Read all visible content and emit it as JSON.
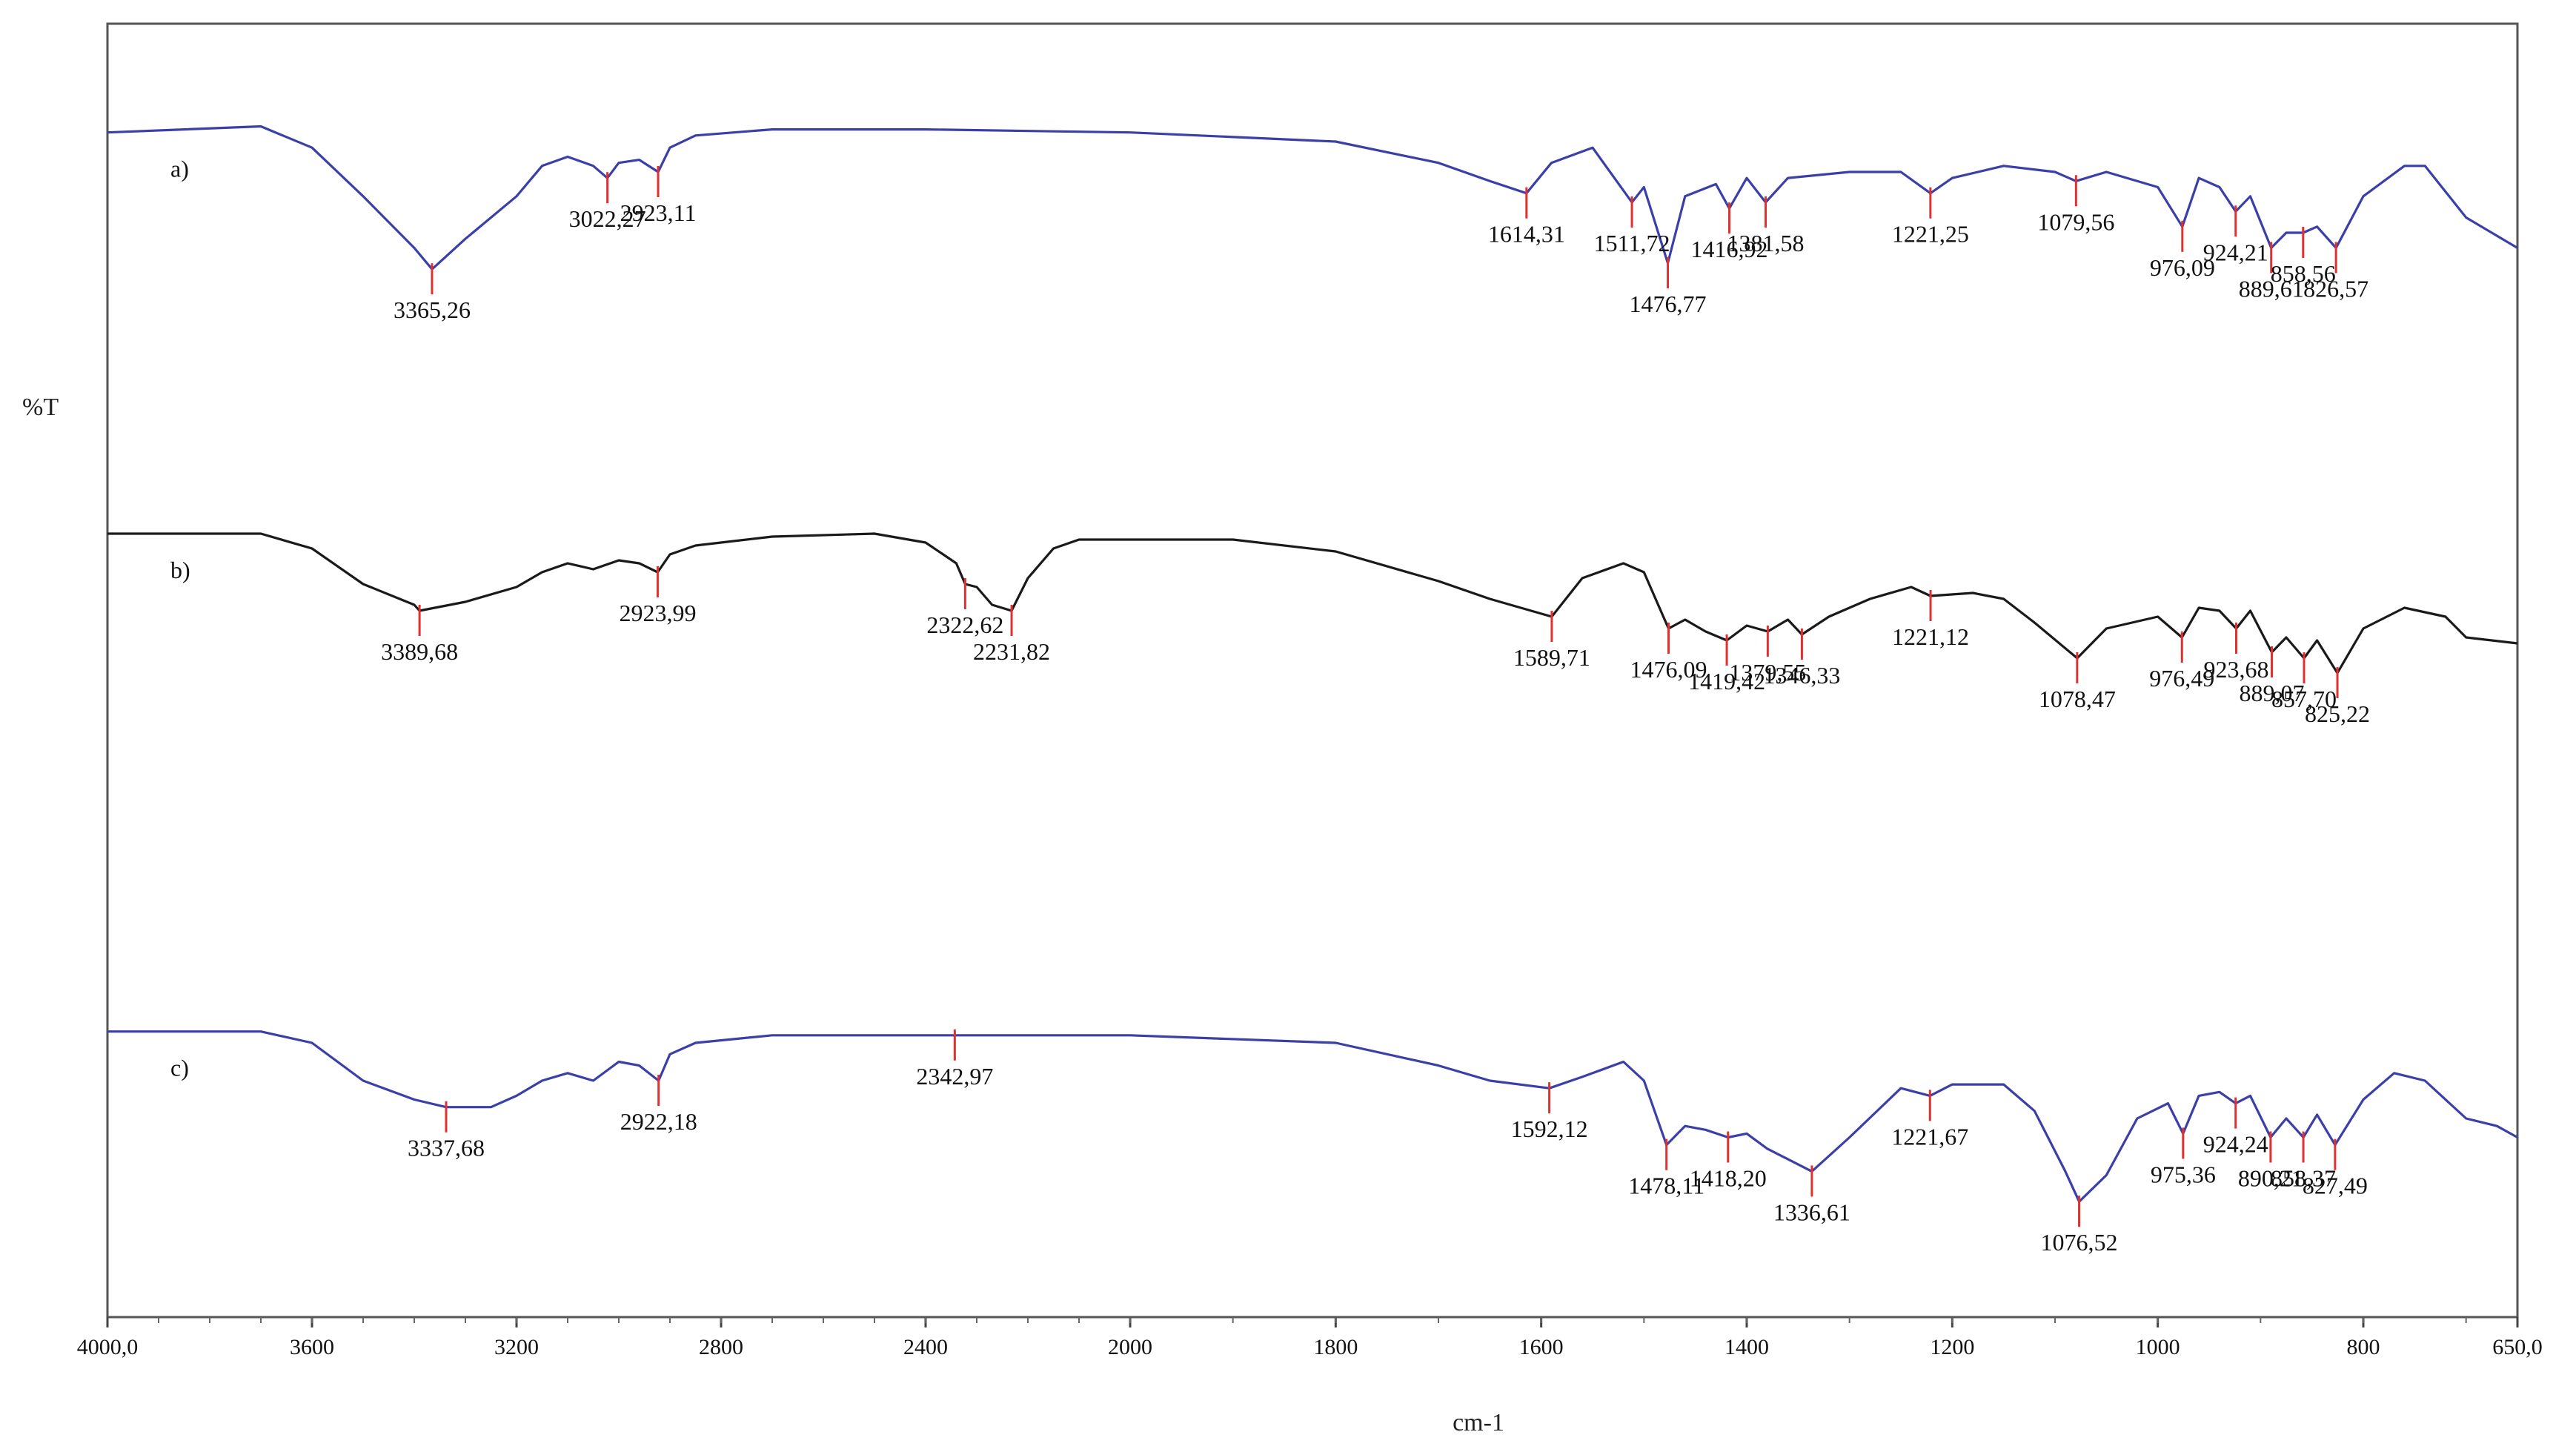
{
  "chart_data": {
    "type": "line",
    "title": "",
    "xlabel": "cm-1",
    "ylabel": "%T",
    "x_reversed": true,
    "xlim": [
      4000,
      650
    ],
    "xtick_labels": [
      "4000,0",
      "3600",
      "3200",
      "2800",
      "2400",
      "2000",
      "1800",
      "1600",
      "1400",
      "1200",
      "1000",
      "800",
      "650,0"
    ],
    "xtick_values": [
      4000,
      3600,
      3200,
      2800,
      2400,
      2000,
      1800,
      1600,
      1400,
      1200,
      1000,
      800,
      650
    ],
    "grid": false,
    "colors": {
      "a": "#3b3fa8",
      "b": "#1a1a1a",
      "c": "#3b3fa8",
      "peak_marker": "#e03030",
      "frame": "#555555"
    },
    "series": [
      {
        "name": "a)",
        "points": [
          [
            4000,
            0.93
          ],
          [
            3700,
            0.95
          ],
          [
            3600,
            0.88
          ],
          [
            3500,
            0.72
          ],
          [
            3400,
            0.55
          ],
          [
            3365.26,
            0.48
          ],
          [
            3300,
            0.58
          ],
          [
            3200,
            0.72
          ],
          [
            3150,
            0.82
          ],
          [
            3100,
            0.85
          ],
          [
            3050,
            0.82
          ],
          [
            3022.27,
            0.78
          ],
          [
            3000,
            0.83
          ],
          [
            2960,
            0.84
          ],
          [
            2923.11,
            0.8
          ],
          [
            2900,
            0.88
          ],
          [
            2850,
            0.92
          ],
          [
            2700,
            0.94
          ],
          [
            2400,
            0.94
          ],
          [
            2000,
            0.93
          ],
          [
            1800,
            0.9
          ],
          [
            1700,
            0.83
          ],
          [
            1650,
            0.77
          ],
          [
            1614.31,
            0.73
          ],
          [
            1590,
            0.83
          ],
          [
            1550,
            0.88
          ],
          [
            1511.72,
            0.7
          ],
          [
            1500,
            0.75
          ],
          [
            1476.77,
            0.5
          ],
          [
            1460,
            0.72
          ],
          [
            1430,
            0.76
          ],
          [
            1416.92,
            0.68
          ],
          [
            1400,
            0.78
          ],
          [
            1381.58,
            0.7
          ],
          [
            1360,
            0.78
          ],
          [
            1300,
            0.8
          ],
          [
            1250,
            0.8
          ],
          [
            1221.25,
            0.73
          ],
          [
            1200,
            0.78
          ],
          [
            1150,
            0.82
          ],
          [
            1100,
            0.8
          ],
          [
            1079.56,
            0.77
          ],
          [
            1050,
            0.8
          ],
          [
            1000,
            0.75
          ],
          [
            976.09,
            0.62
          ],
          [
            960,
            0.78
          ],
          [
            940,
            0.75
          ],
          [
            924.21,
            0.67
          ],
          [
            910,
            0.72
          ],
          [
            889.61,
            0.55
          ],
          [
            875,
            0.6
          ],
          [
            858.56,
            0.6
          ],
          [
            845,
            0.62
          ],
          [
            826.57,
            0.55
          ],
          [
            800,
            0.72
          ],
          [
            760,
            0.82
          ],
          [
            740,
            0.82
          ],
          [
            700,
            0.65
          ],
          [
            650,
            0.55
          ]
        ],
        "peaks": [
          {
            "x": 3365.26,
            "label": "3365,26"
          },
          {
            "x": 3022.27,
            "label": "3022,27"
          },
          {
            "x": 2923.11,
            "label": "2923,11"
          },
          {
            "x": 1614.31,
            "label": "1614,31"
          },
          {
            "x": 1511.72,
            "label": "1511,72"
          },
          {
            "x": 1476.77,
            "label": "1476,77"
          },
          {
            "x": 1416.92,
            "label": "1416,92"
          },
          {
            "x": 1381.58,
            "label": "1381,58"
          },
          {
            "x": 1221.25,
            "label": "1221,25"
          },
          {
            "x": 1079.56,
            "label": "1079,56"
          },
          {
            "x": 976.09,
            "label": "976,09"
          },
          {
            "x": 924.21,
            "label": "924,21"
          },
          {
            "x": 889.61,
            "label": "889,61"
          },
          {
            "x": 858.56,
            "label": "858,56"
          },
          {
            "x": 826.57,
            "label": "826,57"
          }
        ]
      },
      {
        "name": "b)",
        "points": [
          [
            4000,
            0.6
          ],
          [
            3700,
            0.6
          ],
          [
            3600,
            0.55
          ],
          [
            3500,
            0.43
          ],
          [
            3400,
            0.36
          ],
          [
            3389.68,
            0.34
          ],
          [
            3300,
            0.37
          ],
          [
            3200,
            0.42
          ],
          [
            3150,
            0.47
          ],
          [
            3100,
            0.5
          ],
          [
            3050,
            0.48
          ],
          [
            3000,
            0.51
          ],
          [
            2960,
            0.5
          ],
          [
            2923.99,
            0.47
          ],
          [
            2900,
            0.53
          ],
          [
            2850,
            0.56
          ],
          [
            2700,
            0.59
          ],
          [
            2500,
            0.6
          ],
          [
            2400,
            0.57
          ],
          [
            2340,
            0.5
          ],
          [
            2322.62,
            0.43
          ],
          [
            2300,
            0.42
          ],
          [
            2270,
            0.36
          ],
          [
            2231.82,
            0.34
          ],
          [
            2200,
            0.45
          ],
          [
            2150,
            0.55
          ],
          [
            2100,
            0.58
          ],
          [
            1900,
            0.58
          ],
          [
            1800,
            0.54
          ],
          [
            1700,
            0.44
          ],
          [
            1650,
            0.38
          ],
          [
            1589.71,
            0.32
          ],
          [
            1560,
            0.45
          ],
          [
            1520,
            0.5
          ],
          [
            1500,
            0.47
          ],
          [
            1476.09,
            0.28
          ],
          [
            1460,
            0.31
          ],
          [
            1440,
            0.27
          ],
          [
            1419.42,
            0.24
          ],
          [
            1400,
            0.29
          ],
          [
            1379.55,
            0.27
          ],
          [
            1360,
            0.31
          ],
          [
            1346.33,
            0.26
          ],
          [
            1320,
            0.32
          ],
          [
            1280,
            0.38
          ],
          [
            1240,
            0.42
          ],
          [
            1221.12,
            0.39
          ],
          [
            1180,
            0.4
          ],
          [
            1150,
            0.38
          ],
          [
            1120,
            0.3
          ],
          [
            1078.47,
            0.18
          ],
          [
            1050,
            0.28
          ],
          [
            1000,
            0.32
          ],
          [
            976.49,
            0.25
          ],
          [
            960,
            0.35
          ],
          [
            940,
            0.34
          ],
          [
            923.68,
            0.28
          ],
          [
            910,
            0.34
          ],
          [
            889.07,
            0.2
          ],
          [
            875,
            0.25
          ],
          [
            857.7,
            0.18
          ],
          [
            845,
            0.24
          ],
          [
            825.22,
            0.13
          ],
          [
            800,
            0.28
          ],
          [
            760,
            0.35
          ],
          [
            720,
            0.32
          ],
          [
            700,
            0.25
          ],
          [
            650,
            0.23
          ]
        ],
        "peaks": [
          {
            "x": 3389.68,
            "label": "3389,68"
          },
          {
            "x": 2923.99,
            "label": "2923,99"
          },
          {
            "x": 2322.62,
            "label": "2322,62"
          },
          {
            "x": 2231.82,
            "label": "2231,82"
          },
          {
            "x": 1589.71,
            "label": "1589,71"
          },
          {
            "x": 1476.09,
            "label": "1476,09"
          },
          {
            "x": 1419.42,
            "label": "1419,42"
          },
          {
            "x": 1379.55,
            "label": "1379,55"
          },
          {
            "x": 1346.33,
            "label": "1346,33"
          },
          {
            "x": 1221.12,
            "label": "1221,12"
          },
          {
            "x": 1078.47,
            "label": "1078,47"
          },
          {
            "x": 976.49,
            "label": "976,49"
          },
          {
            "x": 923.68,
            "label": "923,68"
          },
          {
            "x": 889.07,
            "label": "889,07"
          },
          {
            "x": 857.7,
            "label": "857,70"
          },
          {
            "x": 825.22,
            "label": "825,22"
          }
        ]
      },
      {
        "name": "c)",
        "points": [
          [
            4000,
            0.33
          ],
          [
            3700,
            0.33
          ],
          [
            3600,
            0.3
          ],
          [
            3500,
            0.2
          ],
          [
            3400,
            0.15
          ],
          [
            3337.68,
            0.13
          ],
          [
            3250,
            0.13
          ],
          [
            3200,
            0.16
          ],
          [
            3150,
            0.2
          ],
          [
            3100,
            0.22
          ],
          [
            3050,
            0.2
          ],
          [
            3000,
            0.25
          ],
          [
            2960,
            0.24
          ],
          [
            2922.18,
            0.2
          ],
          [
            2900,
            0.27
          ],
          [
            2850,
            0.3
          ],
          [
            2700,
            0.32
          ],
          [
            2400,
            0.32
          ],
          [
            2342.97,
            0.32
          ],
          [
            2300,
            0.32
          ],
          [
            2000,
            0.32
          ],
          [
            1800,
            0.3
          ],
          [
            1700,
            0.24
          ],
          [
            1650,
            0.2
          ],
          [
            1592.12,
            0.18
          ],
          [
            1560,
            0.21
          ],
          [
            1520,
            0.25
          ],
          [
            1500,
            0.2
          ],
          [
            1478.11,
            0.03
          ],
          [
            1460,
            0.08
          ],
          [
            1440,
            0.07
          ],
          [
            1418.2,
            0.05
          ],
          [
            1400,
            0.06
          ],
          [
            1380,
            0.02
          ],
          [
            1336.61,
            -0.04
          ],
          [
            1300,
            0.05
          ],
          [
            1250,
            0.18
          ],
          [
            1221.67,
            0.16
          ],
          [
            1200,
            0.19
          ],
          [
            1150,
            0.19
          ],
          [
            1120,
            0.12
          ],
          [
            1090,
            -0.04
          ],
          [
            1076.52,
            -0.12
          ],
          [
            1050,
            -0.05
          ],
          [
            1020,
            0.1
          ],
          [
            990,
            0.14
          ],
          [
            975.36,
            0.06
          ],
          [
            960,
            0.16
          ],
          [
            940,
            0.17
          ],
          [
            924.24,
            0.14
          ],
          [
            910,
            0.16
          ],
          [
            890.21,
            0.05
          ],
          [
            875,
            0.1
          ],
          [
            858.37,
            0.05
          ],
          [
            845,
            0.11
          ],
          [
            827.49,
            0.03
          ],
          [
            800,
            0.15
          ],
          [
            770,
            0.22
          ],
          [
            740,
            0.2
          ],
          [
            700,
            0.1
          ],
          [
            670,
            0.08
          ],
          [
            650,
            0.05
          ]
        ],
        "peaks": [
          {
            "x": 3337.68,
            "label": "3337,68"
          },
          {
            "x": 2922.18,
            "label": "2922,18"
          },
          {
            "x": 2342.97,
            "label": "2342,97"
          },
          {
            "x": 1592.12,
            "label": "1592,12"
          },
          {
            "x": 1478.11,
            "label": "1478,11"
          },
          {
            "x": 1418.2,
            "label": "1418,20"
          },
          {
            "x": 1336.61,
            "label": "1336,61"
          },
          {
            "x": 1221.67,
            "label": "1221,67"
          },
          {
            "x": 1076.52,
            "label": "1076,52"
          },
          {
            "x": 975.36,
            "label": "975,36"
          },
          {
            "x": 924.24,
            "label": "924,24"
          },
          {
            "x": 890.21,
            "label": "890,21"
          },
          {
            "x": 858.37,
            "label": "858,37"
          },
          {
            "x": 827.49,
            "label": "827,49"
          }
        ]
      }
    ]
  }
}
